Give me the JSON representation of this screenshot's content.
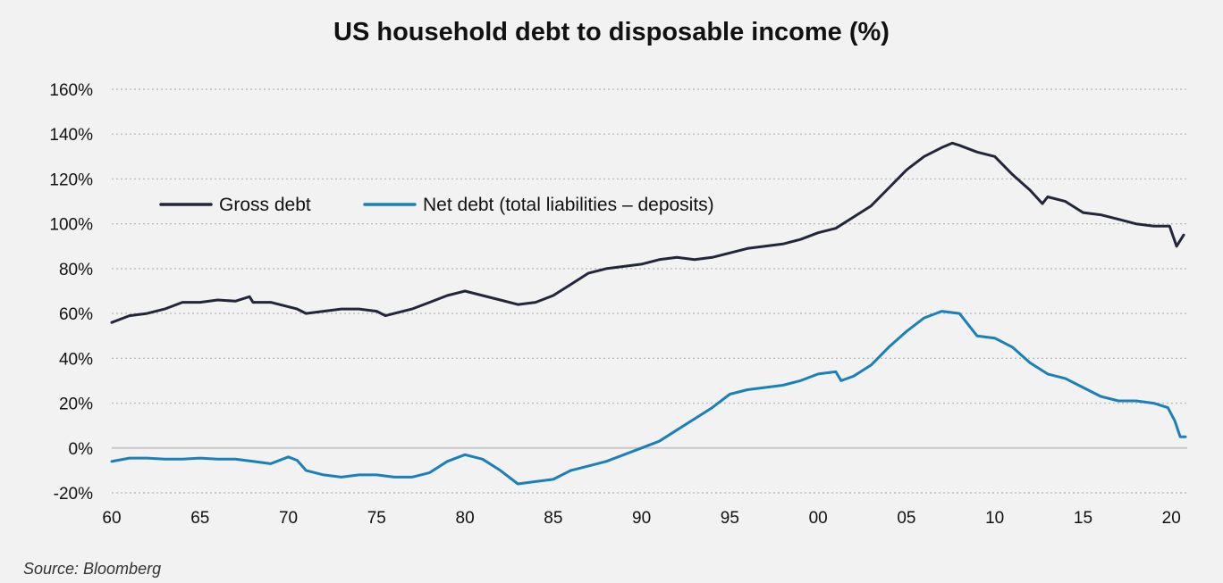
{
  "chart_data": {
    "type": "line",
    "title": "US household debt to disposable income (%)",
    "source": "Source: Bloomberg",
    "xlabel": "",
    "ylabel": "",
    "x_range": [
      1960,
      2020.9
    ],
    "ylim": [
      -20,
      160
    ],
    "yticks": [
      -20,
      0,
      20,
      40,
      60,
      80,
      100,
      120,
      140,
      160
    ],
    "ytick_labels": [
      "-20%",
      "0%",
      "20%",
      "40%",
      "60%",
      "80%",
      "100%",
      "120%",
      "140%",
      "160%"
    ],
    "xticks": [
      1960,
      1965,
      1970,
      1975,
      1980,
      1985,
      1990,
      1995,
      2000,
      2005,
      2010,
      2015,
      2020
    ],
    "xtick_labels": [
      "60",
      "65",
      "70",
      "75",
      "80",
      "85",
      "90",
      "95",
      "00",
      "05",
      "10",
      "15",
      "20"
    ],
    "grid": "horizontal-dotted",
    "legend_position": "top-left",
    "series": [
      {
        "name": "Gross debt",
        "color": "#23263a",
        "points": [
          [
            1960,
            56
          ],
          [
            1961,
            59
          ],
          [
            1962,
            60
          ],
          [
            1963,
            62
          ],
          [
            1964,
            65
          ],
          [
            1965,
            65
          ],
          [
            1966,
            66
          ],
          [
            1967,
            65.5
          ],
          [
            1967.8,
            67.5
          ],
          [
            1968,
            65
          ],
          [
            1969,
            65
          ],
          [
            1970,
            63
          ],
          [
            1970.5,
            62
          ],
          [
            1971,
            60
          ],
          [
            1972,
            61
          ],
          [
            1973,
            62
          ],
          [
            1974,
            62
          ],
          [
            1975,
            61
          ],
          [
            1975.5,
            59
          ],
          [
            1976,
            60
          ],
          [
            1977,
            62
          ],
          [
            1978,
            65
          ],
          [
            1979,
            68
          ],
          [
            1980,
            70
          ],
          [
            1981,
            68
          ],
          [
            1982,
            66
          ],
          [
            1983,
            64
          ],
          [
            1984,
            65
          ],
          [
            1985,
            68
          ],
          [
            1986,
            73
          ],
          [
            1987,
            78
          ],
          [
            1988,
            80
          ],
          [
            1989,
            81
          ],
          [
            1990,
            82
          ],
          [
            1991,
            84
          ],
          [
            1992,
            85
          ],
          [
            1993,
            84
          ],
          [
            1994,
            85
          ],
          [
            1995,
            87
          ],
          [
            1996,
            89
          ],
          [
            1997,
            90
          ],
          [
            1998,
            91
          ],
          [
            1999,
            93
          ],
          [
            2000,
            96
          ],
          [
            2001,
            98
          ],
          [
            2002,
            103
          ],
          [
            2003,
            108
          ],
          [
            2004,
            116
          ],
          [
            2005,
            124
          ],
          [
            2006,
            130
          ],
          [
            2007,
            134
          ],
          [
            2007.6,
            136
          ],
          [
            2008,
            135
          ],
          [
            2009,
            132
          ],
          [
            2010,
            130
          ],
          [
            2011,
            122
          ],
          [
            2012,
            115
          ],
          [
            2012.7,
            109
          ],
          [
            2013,
            112
          ],
          [
            2014,
            110
          ],
          [
            2015,
            105
          ],
          [
            2016,
            104
          ],
          [
            2017,
            102
          ],
          [
            2018,
            100
          ],
          [
            2019,
            99
          ],
          [
            2019.9,
            99
          ],
          [
            2020.3,
            90
          ],
          [
            2020.7,
            95
          ]
        ]
      },
      {
        "name": "Net debt (total liabilities – deposits)",
        "color": "#1a80b9",
        "points": [
          [
            1960,
            -6
          ],
          [
            1961,
            -4.5
          ],
          [
            1962,
            -4.5
          ],
          [
            1963,
            -5
          ],
          [
            1964,
            -5
          ],
          [
            1965,
            -4.5
          ],
          [
            1966,
            -5
          ],
          [
            1967,
            -5
          ],
          [
            1968,
            -6
          ],
          [
            1969,
            -7
          ],
          [
            1970,
            -4
          ],
          [
            1970.5,
            -5.5
          ],
          [
            1971,
            -10
          ],
          [
            1972,
            -12
          ],
          [
            1973,
            -13
          ],
          [
            1974,
            -12
          ],
          [
            1975,
            -12
          ],
          [
            1976,
            -13
          ],
          [
            1977,
            -13
          ],
          [
            1978,
            -11
          ],
          [
            1979,
            -6
          ],
          [
            1980,
            -3
          ],
          [
            1981,
            -5
          ],
          [
            1982,
            -10
          ],
          [
            1983,
            -16
          ],
          [
            1984,
            -15
          ],
          [
            1985,
            -14
          ],
          [
            1986,
            -10
          ],
          [
            1987,
            -8
          ],
          [
            1988,
            -6
          ],
          [
            1989,
            -3
          ],
          [
            1990,
            0
          ],
          [
            1991,
            3
          ],
          [
            1992,
            8
          ],
          [
            1993,
            13
          ],
          [
            1994,
            18
          ],
          [
            1995,
            24
          ],
          [
            1996,
            26
          ],
          [
            1997,
            27
          ],
          [
            1998,
            28
          ],
          [
            1999,
            30
          ],
          [
            2000,
            33
          ],
          [
            2001,
            34
          ],
          [
            2001.3,
            30
          ],
          [
            2002,
            32
          ],
          [
            2003,
            37
          ],
          [
            2004,
            45
          ],
          [
            2005,
            52
          ],
          [
            2006,
            58
          ],
          [
            2007,
            61
          ],
          [
            2008,
            60
          ],
          [
            2008.5,
            55
          ],
          [
            2009,
            50
          ],
          [
            2010,
            49
          ],
          [
            2011,
            45
          ],
          [
            2012,
            38
          ],
          [
            2013,
            33
          ],
          [
            2014,
            31
          ],
          [
            2015,
            27
          ],
          [
            2016,
            23
          ],
          [
            2017,
            21
          ],
          [
            2018,
            21
          ],
          [
            2019,
            20
          ],
          [
            2019.8,
            18
          ],
          [
            2020.2,
            12
          ],
          [
            2020.5,
            5
          ],
          [
            2020.8,
            5
          ]
        ]
      }
    ]
  }
}
